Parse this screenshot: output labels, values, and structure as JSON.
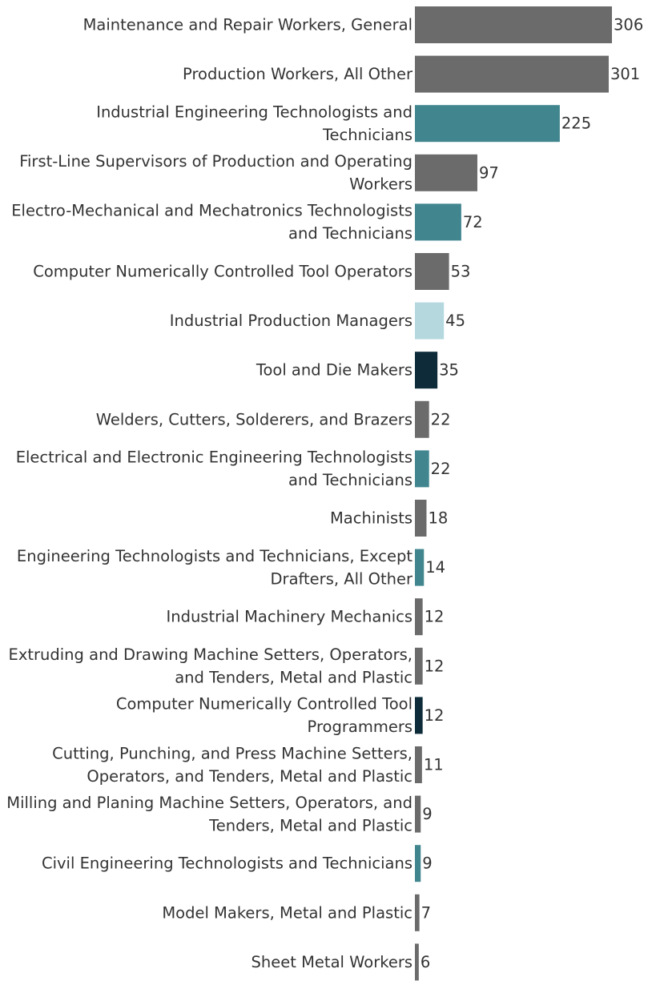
{
  "chart_data": {
    "type": "bar",
    "orientation": "horizontal",
    "title": "",
    "xlabel": "",
    "ylabel": "",
    "xlim": [
      0,
      306
    ],
    "grid": false,
    "legend": "none",
    "colors": {
      "gray": "#6b6b6b",
      "teal": "#41868f",
      "light": "#b5d8df",
      "dark": "#0d2b38"
    },
    "categories": [
      "Maintenance and Repair Workers, General",
      "Production Workers, All Other",
      "Industrial Engineering Technologists and Technicians",
      "First-Line Supervisors of Production and Operating Workers",
      "Electro-Mechanical and Mechatronics Technologists and Technicians",
      "Computer Numerically Controlled Tool Operators",
      "Industrial Production Managers",
      "Tool and Die Makers",
      "Welders, Cutters, Solderers, and Brazers",
      "Electrical and Electronic Engineering Technologists and Technicians",
      "Machinists",
      "Engineering Technologists and Technicians, Except Drafters, All Other",
      "Industrial Machinery Mechanics",
      "Extruding and Drawing Machine Setters, Operators, and Tenders, Metal and Plastic",
      "Computer Numerically Controlled Tool Programmers",
      "Cutting, Punching, and Press Machine Setters, Operators, and Tenders, Metal and Plastic",
      "Milling and Planing Machine Setters, Operators, and Tenders, Metal and Plastic",
      "Civil Engineering Technologists and Technicians",
      "Model Makers, Metal and Plastic",
      "Sheet Metal Workers"
    ],
    "label_lines": [
      [
        "Maintenance and Repair Workers, General"
      ],
      [
        "Production Workers, All Other"
      ],
      [
        "Industrial Engineering Technologists and",
        "Technicians"
      ],
      [
        "First-Line Supervisors of Production and Operating",
        "Workers"
      ],
      [
        "Electro-Mechanical and Mechatronics Technologists",
        "and Technicians"
      ],
      [
        "Computer Numerically Controlled Tool Operators"
      ],
      [
        "Industrial Production Managers"
      ],
      [
        "Tool and Die Makers"
      ],
      [
        "Welders, Cutters, Solderers, and Brazers"
      ],
      [
        "Electrical and Electronic Engineering Technologists",
        "and Technicians"
      ],
      [
        "Machinists"
      ],
      [
        "Engineering Technologists and Technicians, Except",
        "Drafters, All Other"
      ],
      [
        "Industrial Machinery Mechanics"
      ],
      [
        "Extruding and Drawing Machine Setters, Operators,",
        "and Tenders, Metal and Plastic"
      ],
      [
        "Computer Numerically Controlled Tool",
        "Programmers"
      ],
      [
        "Cutting, Punching, and Press Machine Setters,",
        "Operators, and Tenders, Metal and Plastic"
      ],
      [
        "Milling and Planing Machine Setters, Operators, and",
        "Tenders, Metal and Plastic"
      ],
      [
        "Civil Engineering Technologists and Technicians"
      ],
      [
        "Model Makers, Metal and Plastic"
      ],
      [
        "Sheet Metal Workers"
      ]
    ],
    "values": [
      306,
      301,
      225,
      97,
      72,
      53,
      45,
      35,
      22,
      22,
      18,
      14,
      12,
      12,
      12,
      11,
      9,
      9,
      7,
      6
    ],
    "bar_colors": [
      "gray",
      "gray",
      "teal",
      "gray",
      "teal",
      "gray",
      "light",
      "dark",
      "gray",
      "teal",
      "gray",
      "teal",
      "gray",
      "gray",
      "dark",
      "gray",
      "gray",
      "teal",
      "gray",
      "gray"
    ]
  }
}
